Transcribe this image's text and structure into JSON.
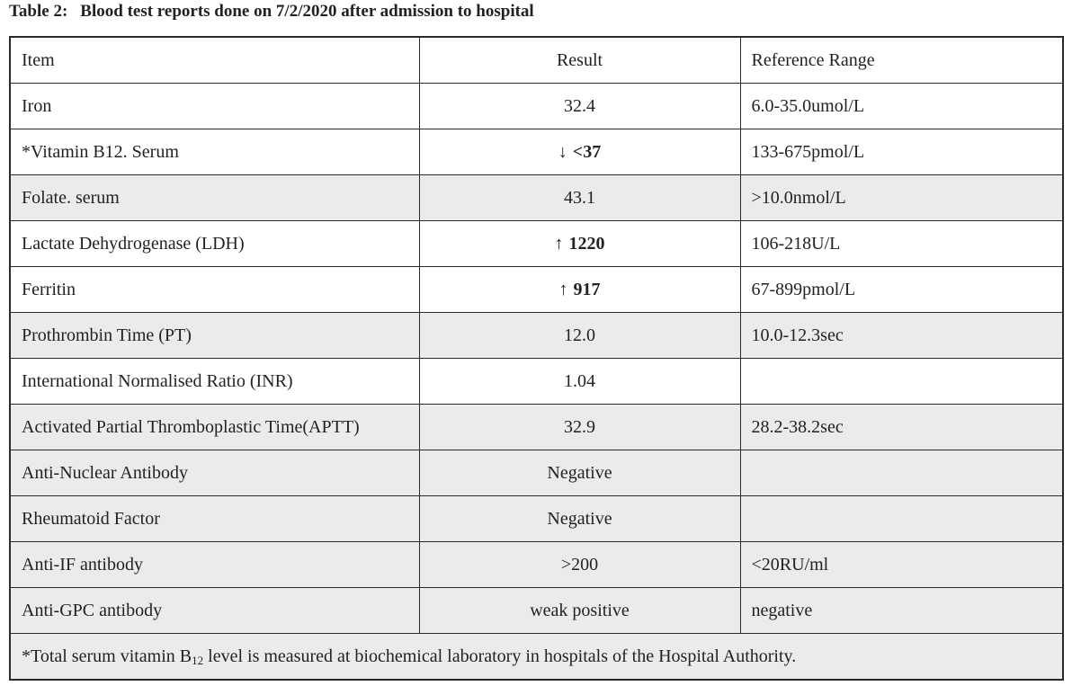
{
  "caption": {
    "label": "Table 2:",
    "title": "Blood test reports done on 7/2/2020 after admission to hospital"
  },
  "table": {
    "headers": [
      "Item",
      "Result",
      "Reference Range"
    ],
    "rows": [
      {
        "item": "Iron",
        "arrow": "",
        "result": "32.4",
        "flagged": false,
        "range": "6.0-35.0umol/L",
        "shaded": false
      },
      {
        "item": "*Vitamin B12. Serum",
        "arrow": "↓",
        "result": "<37",
        "flagged": true,
        "range": "133-675pmol/L",
        "shaded": false
      },
      {
        "item": "Folate. serum",
        "arrow": "",
        "result": "43.1",
        "flagged": false,
        "range": ">10.0nmol/L",
        "shaded": true
      },
      {
        "item": "Lactate Dehydrogenase (LDH)",
        "arrow": "↑",
        "result": "1220",
        "flagged": true,
        "range": "106-218U/L",
        "shaded": false
      },
      {
        "item": "Ferritin",
        "arrow": "↑",
        "result": "917",
        "flagged": true,
        "range": "67-899pmol/L",
        "shaded": false
      },
      {
        "item": "Prothrombin Time (PT)",
        "arrow": "",
        "result": "12.0",
        "flagged": false,
        "range": "10.0-12.3sec",
        "shaded": true
      },
      {
        "item": "International Normalised Ratio (INR)",
        "arrow": "",
        "result": "1.04",
        "flagged": false,
        "range": "",
        "shaded": false
      },
      {
        "item": "Activated Partial Thromboplastic Time(APTT)",
        "arrow": "",
        "result": "32.9",
        "flagged": false,
        "range": "28.2-38.2sec",
        "shaded": true
      },
      {
        "item": "Anti-Nuclear Antibody",
        "arrow": "",
        "result": "Negative",
        "flagged": false,
        "range": "",
        "shaded": true
      },
      {
        "item": "Rheumatoid Factor",
        "arrow": "",
        "result": "Negative",
        "flagged": false,
        "range": "",
        "shaded": true
      },
      {
        "item": "Anti-IF antibody",
        "arrow": "",
        "result": ">200",
        "flagged": false,
        "range": "<20RU/ml",
        "shaded": true
      },
      {
        "item": "Anti-GPC antibody",
        "arrow": "",
        "result": "weak positive",
        "flagged": false,
        "range": "negative",
        "shaded": true
      }
    ],
    "footnote": {
      "before": "*Total serum vitamin B",
      "subscript": "12",
      "after": " level is measured at biochemical laboratory in hospitals of the Hospital Authority."
    }
  }
}
